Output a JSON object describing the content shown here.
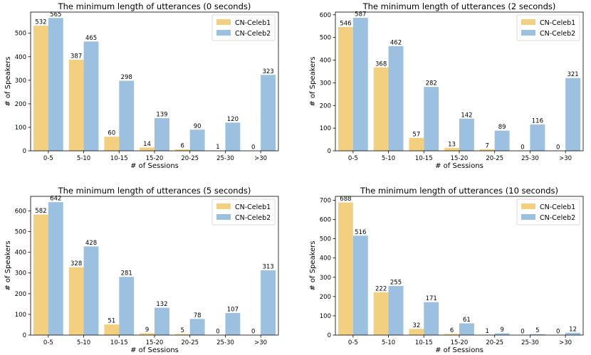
{
  "chart_data": [
    {
      "type": "bar",
      "title": "The minimum length of utterances (0 seconds)",
      "xlabel": "# of Sessions",
      "ylabel": "# of Speakers",
      "categories": [
        "0-5",
        "5-10",
        "10-15",
        "15-20",
        "20-25",
        "25-30",
        ">30"
      ],
      "series": [
        {
          "name": "CN-Celeb1",
          "values": [
            532,
            387,
            60,
            14,
            6,
            1,
            0
          ]
        },
        {
          "name": "CN-Celeb2",
          "values": [
            565,
            465,
            298,
            139,
            90,
            120,
            323
          ]
        }
      ],
      "ylim": [
        0,
        590
      ],
      "yticks": [
        0,
        100,
        200,
        300,
        400,
        500
      ],
      "legend": "top-right",
      "grid": false
    },
    {
      "type": "bar",
      "title": "The minimum length of utterances (2 seconds)",
      "xlabel": "# of Sessions",
      "ylabel": "# of Speakers",
      "categories": [
        "0-5",
        "5-10",
        "10-15",
        "15-20",
        "20-25",
        "25-30",
        ">30"
      ],
      "series": [
        {
          "name": "CN-Celeb1",
          "values": [
            546,
            368,
            57,
            13,
            7,
            0,
            0
          ]
        },
        {
          "name": "CN-Celeb2",
          "values": [
            587,
            462,
            282,
            142,
            89,
            116,
            321
          ]
        }
      ],
      "ylim": [
        0,
        612
      ],
      "yticks": [
        0,
        100,
        200,
        300,
        400,
        500,
        600
      ],
      "legend": "top-right",
      "grid": false
    },
    {
      "type": "bar",
      "title": "The minimum length of utterances (5 seconds)",
      "xlabel": "# of Sessions",
      "ylabel": "# of Speakers",
      "categories": [
        "0-5",
        "5-10",
        "10-15",
        "15-20",
        "20-25",
        "25-30",
        ">30"
      ],
      "series": [
        {
          "name": "CN-Celeb1",
          "values": [
            582,
            328,
            51,
            9,
            5,
            0,
            0
          ]
        },
        {
          "name": "CN-Celeb2",
          "values": [
            642,
            428,
            281,
            132,
            78,
            107,
            313
          ]
        }
      ],
      "ylim": [
        0,
        670
      ],
      "yticks": [
        0,
        100,
        200,
        300,
        400,
        500,
        600
      ],
      "legend": "top-right",
      "grid": false
    },
    {
      "type": "bar",
      "title": "The minimum length of utterances (10 seconds)",
      "xlabel": "# of Sessions",
      "ylabel": "# of Speakers",
      "categories": [
        "0-5",
        "5-10",
        "10-15",
        "15-20",
        "20-25",
        "25-30",
        ">30"
      ],
      "series": [
        {
          "name": "CN-Celeb1",
          "values": [
            688,
            222,
            32,
            6,
            1,
            0,
            0
          ]
        },
        {
          "name": "CN-Celeb2",
          "values": [
            516,
            255,
            171,
            61,
            9,
            5,
            12
          ]
        }
      ],
      "ylim": [
        0,
        720
      ],
      "yticks": [
        0,
        100,
        200,
        300,
        400,
        500,
        600,
        700
      ],
      "legend": "top-right",
      "grid": false
    }
  ],
  "colors": {
    "CN-Celeb1": "#f2d07f",
    "CN-Celeb2": "#9cc0df",
    "axis": "#000000",
    "text": "#000000"
  }
}
